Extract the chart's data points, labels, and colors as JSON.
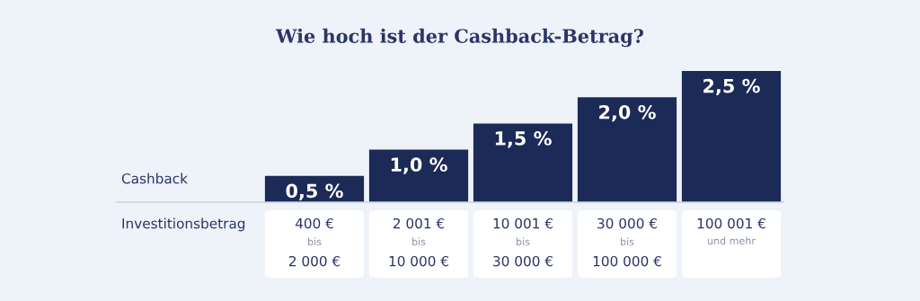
{
  "chart_data": {
    "type": "bar",
    "title": "Wie hoch ist der Cashback-Betrag?",
    "annotations": [
      "Cashback",
      "Investitionsbetrag"
    ],
    "categories": [
      "400 €\nbis\n2 000 €",
      "2 001 €\nbis\n10 000 €",
      "10 001 €\nbis\n30 000 €",
      "30 000 €\nbis\n100 000 €",
      "100 001 €\nund mehr"
    ],
    "values": [
      0.5,
      1.0,
      1.5,
      2.0,
      2.5
    ],
    "value_labels": [
      "0,5 %",
      "1,0 %",
      "1,5 %",
      "2,0 %",
      "2,5 %"
    ],
    "color": "#1b2a56"
  }
}
